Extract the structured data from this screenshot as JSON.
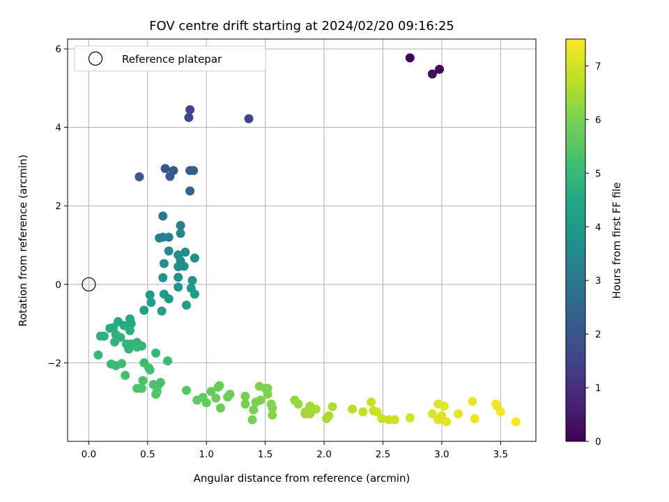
{
  "chart_data": {
    "type": "scatter",
    "title": "FOV centre drift starting at 2024/02/20 09:16:25",
    "xlabel": "Angular distance from reference (arcmin)",
    "ylabel": "Rotation from reference (arcmin)",
    "xlim": [
      -0.18,
      3.8
    ],
    "ylim": [
      -4.0,
      6.25
    ],
    "xticks": [
      0.0,
      0.5,
      1.0,
      1.5,
      2.0,
      2.5,
      3.0,
      3.5
    ],
    "xtick_labels": [
      "0.0",
      "0.5",
      "1.0",
      "1.5",
      "2.0",
      "2.5",
      "3.0",
      "3.5"
    ],
    "yticks": [
      -2,
      0,
      2,
      4,
      6
    ],
    "ytick_labels": [
      "−2",
      "0",
      "2",
      "4",
      "6"
    ],
    "grid": true,
    "legend": {
      "placement": "upper-left",
      "entries": [
        "Reference platepar"
      ]
    },
    "reference_point": {
      "x": 0.0,
      "y": 0.0,
      "label": "Reference platepar"
    },
    "colorbar": {
      "label": "Hours from first FF file",
      "range": [
        0,
        7.5
      ],
      "ticks": [
        0,
        1,
        2,
        3,
        4,
        5,
        6,
        7
      ],
      "tick_labels": [
        "0",
        "1",
        "2",
        "3",
        "4",
        "5",
        "6",
        "7"
      ],
      "colormap": "viridis"
    },
    "points": [
      [
        2.73,
        5.77,
        0.05
      ],
      [
        2.98,
        5.48,
        0.15
      ],
      [
        2.92,
        5.36,
        0.25
      ],
      [
        0.86,
        4.45,
        1.5
      ],
      [
        0.85,
        4.25,
        1.6
      ],
      [
        1.36,
        4.22,
        1.55
      ],
      [
        0.43,
        2.74,
        2.05
      ],
      [
        0.65,
        2.95,
        2.1
      ],
      [
        0.72,
        2.9,
        2.1
      ],
      [
        0.69,
        2.75,
        2.15
      ],
      [
        0.86,
        2.9,
        2.2
      ],
      [
        0.89,
        2.9,
        2.2
      ],
      [
        0.86,
        2.38,
        2.3
      ],
      [
        0.63,
        1.74,
        3.05
      ],
      [
        0.78,
        1.5,
        3.2
      ],
      [
        0.6,
        1.18,
        3.25
      ],
      [
        0.63,
        1.2,
        3.25
      ],
      [
        0.68,
        1.2,
        3.3
      ],
      [
        0.78,
        1.3,
        3.35
      ],
      [
        0.68,
        0.85,
        3.5
      ],
      [
        0.76,
        0.75,
        3.55
      ],
      [
        0.82,
        0.82,
        3.55
      ],
      [
        0.9,
        0.67,
        3.6
      ],
      [
        0.78,
        0.6,
        3.65
      ],
      [
        0.76,
        0.45,
        3.7
      ],
      [
        0.81,
        0.46,
        3.7
      ],
      [
        0.64,
        0.53,
        3.75
      ],
      [
        0.63,
        0.17,
        3.85
      ],
      [
        0.76,
        0.18,
        3.85
      ],
      [
        0.88,
        0.1,
        3.9
      ],
      [
        0.76,
        -0.07,
        3.95
      ],
      [
        0.87,
        -0.1,
        4.0
      ],
      [
        0.64,
        -0.25,
        4.05
      ],
      [
        0.9,
        -0.25,
        4.05
      ],
      [
        0.52,
        -0.27,
        4.1
      ],
      [
        0.68,
        -0.37,
        4.1
      ],
      [
        0.53,
        -0.46,
        4.15
      ],
      [
        0.83,
        -0.53,
        4.2
      ],
      [
        0.47,
        -0.66,
        4.25
      ],
      [
        0.62,
        -0.68,
        4.25
      ],
      [
        0.35,
        -0.88,
        4.5
      ],
      [
        0.25,
        -0.95,
        4.55
      ],
      [
        0.36,
        -1.0,
        4.55
      ],
      [
        0.3,
        -1.05,
        4.6
      ],
      [
        0.18,
        -1.12,
        4.65
      ],
      [
        0.21,
        -1.1,
        4.65
      ],
      [
        0.35,
        -1.18,
        4.7
      ],
      [
        0.1,
        -1.32,
        4.75
      ],
      [
        0.23,
        -1.28,
        4.75
      ],
      [
        0.13,
        -1.32,
        4.75
      ],
      [
        0.27,
        -1.35,
        4.8
      ],
      [
        0.22,
        -1.47,
        4.85
      ],
      [
        0.32,
        -1.52,
        4.85
      ],
      [
        0.41,
        -1.48,
        4.9
      ],
      [
        0.45,
        -1.57,
        4.9
      ],
      [
        0.36,
        -1.52,
        4.9
      ],
      [
        0.34,
        -1.65,
        4.95
      ],
      [
        0.41,
        -1.6,
        4.95
      ],
      [
        0.57,
        -1.75,
        5.0
      ],
      [
        0.08,
        -1.8,
        5.0
      ],
      [
        0.67,
        -1.95,
        5.05
      ],
      [
        0.19,
        -2.03,
        5.1
      ],
      [
        0.23,
        -2.07,
        5.1
      ],
      [
        0.28,
        -2.02,
        5.15
      ],
      [
        0.47,
        -2.0,
        5.15
      ],
      [
        0.51,
        -2.13,
        5.2
      ],
      [
        0.52,
        -2.18,
        5.2
      ],
      [
        0.31,
        -2.32,
        5.25
      ],
      [
        0.46,
        -2.45,
        5.3
      ],
      [
        0.55,
        -2.55,
        5.3
      ],
      [
        0.61,
        -2.5,
        5.35
      ],
      [
        0.59,
        -2.57,
        5.35
      ],
      [
        0.41,
        -2.65,
        5.4
      ],
      [
        0.45,
        -2.65,
        5.4
      ],
      [
        0.58,
        -2.73,
        5.45
      ],
      [
        0.57,
        -2.8,
        5.45
      ],
      [
        0.83,
        -2.7,
        5.5
      ],
      [
        0.92,
        -2.95,
        5.65
      ],
      [
        0.97,
        -2.88,
        5.7
      ],
      [
        1.0,
        -3.02,
        5.7
      ],
      [
        1.04,
        -2.73,
        5.75
      ],
      [
        1.08,
        -2.9,
        5.75
      ],
      [
        1.1,
        -2.62,
        5.75
      ],
      [
        1.11,
        -2.58,
        5.8
      ],
      [
        1.12,
        -3.15,
        5.8
      ],
      [
        1.18,
        -2.87,
        5.85
      ],
      [
        1.2,
        -2.8,
        5.85
      ],
      [
        1.33,
        -2.85,
        5.9
      ],
      [
        1.33,
        -3.05,
        5.9
      ],
      [
        1.39,
        -3.45,
        5.95
      ],
      [
        1.4,
        -3.2,
        5.95
      ],
      [
        1.42,
        -3.0,
        5.95
      ],
      [
        1.46,
        -2.95,
        6.0
      ],
      [
        1.45,
        -2.6,
        6.0
      ],
      [
        1.5,
        -2.65,
        6.0
      ],
      [
        1.52,
        -2.65,
        6.05
      ],
      [
        1.52,
        -2.8,
        6.05
      ],
      [
        1.55,
        -3.05,
        6.1
      ],
      [
        1.56,
        -3.15,
        6.1
      ],
      [
        1.56,
        -3.33,
        6.1
      ],
      [
        1.75,
        -2.95,
        6.3
      ],
      [
        1.78,
        -3.05,
        6.35
      ],
      [
        1.84,
        -3.25,
        6.4
      ],
      [
        1.84,
        -3.3,
        6.4
      ],
      [
        1.88,
        -3.1,
        6.45
      ],
      [
        1.88,
        -3.3,
        6.45
      ],
      [
        1.88,
        -3.18,
        6.45
      ],
      [
        1.93,
        -3.18,
        6.5
      ],
      [
        2.02,
        -3.42,
        6.55
      ],
      [
        2.04,
        -3.35,
        6.55
      ],
      [
        2.07,
        -3.12,
        6.6
      ],
      [
        2.24,
        -3.18,
        6.75
      ],
      [
        2.33,
        -3.25,
        6.8
      ],
      [
        2.4,
        -3.0,
        6.85
      ],
      [
        2.42,
        -3.22,
        6.85
      ],
      [
        2.45,
        -3.25,
        6.9
      ],
      [
        2.49,
        -3.42,
        6.9
      ],
      [
        2.55,
        -3.45,
        6.95
      ],
      [
        2.6,
        -3.45,
        6.95
      ],
      [
        2.73,
        -3.4,
        7.0
      ],
      [
        2.92,
        -3.3,
        7.1
      ],
      [
        2.97,
        -3.05,
        7.15
      ],
      [
        2.97,
        -3.45,
        7.15
      ],
      [
        3.0,
        -3.35,
        7.15
      ],
      [
        3.02,
        -3.1,
        7.2
      ],
      [
        3.04,
        -3.5,
        7.2
      ],
      [
        3.14,
        -3.3,
        7.25
      ],
      [
        3.26,
        -2.98,
        7.3
      ],
      [
        3.28,
        -3.42,
        7.3
      ],
      [
        3.46,
        -3.05,
        7.35
      ],
      [
        3.47,
        -3.1,
        7.35
      ],
      [
        3.5,
        -3.25,
        7.4
      ],
      [
        3.63,
        -3.5,
        7.45
      ]
    ]
  }
}
